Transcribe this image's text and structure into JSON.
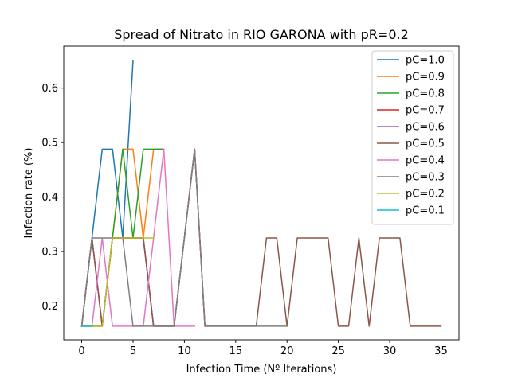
{
  "chart_data": {
    "type": "line",
    "title": "Spread of Nitrato in RIO GARONA with pR=0.2",
    "xlabel": "Infection Time (Nº Iterations)",
    "ylabel": "Infection rate (%)",
    "xlim": [
      -1.75,
      36.75
    ],
    "ylim": [
      0.138,
      0.677
    ],
    "xticks": [
      0,
      5,
      10,
      15,
      20,
      25,
      30,
      35
    ],
    "yticks": [
      0.2,
      0.3,
      0.4,
      0.5,
      0.6
    ],
    "ytick_labels": [
      "0.2",
      "0.3",
      "0.4",
      "0.5",
      "0.6"
    ],
    "grid": false,
    "legend_position": "top-right",
    "series": [
      {
        "name": "pC=1.0",
        "color": "#1f77b4",
        "x": [
          0,
          1,
          2,
          3,
          4,
          5
        ],
        "y": [
          0.163,
          0.325,
          0.488,
          0.488,
          0.325,
          0.65
        ]
      },
      {
        "name": "pC=0.9",
        "color": "#ff7f0e",
        "x": [
          0,
          1,
          2,
          3,
          4,
          5,
          6,
          7,
          8
        ],
        "y": [
          0.163,
          0.163,
          0.163,
          0.325,
          0.488,
          0.488,
          0.325,
          0.488,
          0.488
        ]
      },
      {
        "name": "pC=0.8",
        "color": "#2ca02c",
        "x": [
          0,
          1,
          2,
          3,
          4,
          5,
          6,
          7,
          8
        ],
        "y": [
          0.163,
          0.163,
          0.163,
          0.325,
          0.488,
          0.325,
          0.488,
          0.488,
          0.488
        ]
      },
      {
        "name": "pC=0.7",
        "color": "#d62728",
        "x": [
          0,
          1,
          2,
          3,
          4,
          5,
          6,
          7,
          8,
          9,
          10,
          11,
          12
        ],
        "y": [
          0.163,
          0.325,
          0.163,
          0.325,
          0.325,
          0.325,
          0.325,
          0.163,
          0.163,
          0.163,
          0.325,
          0.488,
          0.163
        ]
      },
      {
        "name": "pC=0.6",
        "color": "#9467bd",
        "x": [
          0,
          1,
          2,
          3,
          4,
          5,
          6,
          7,
          8,
          9,
          10,
          11,
          12
        ],
        "y": [
          0.163,
          0.325,
          0.163,
          0.325,
          0.325,
          0.325,
          0.325,
          0.163,
          0.163,
          0.163,
          0.325,
          0.488,
          0.163
        ]
      },
      {
        "name": "pC=0.5",
        "color": "#8c564b",
        "x": [
          0,
          1,
          2,
          3,
          4,
          5,
          6,
          7,
          8,
          9,
          10,
          11,
          12,
          13,
          14,
          15,
          16,
          17,
          18,
          19,
          20,
          21,
          22,
          23,
          24,
          25,
          26,
          27,
          28,
          29,
          30,
          31,
          32,
          33,
          34,
          35
        ],
        "y": [
          0.163,
          0.325,
          0.163,
          0.325,
          0.325,
          0.325,
          0.325,
          0.163,
          0.163,
          0.163,
          0.325,
          0.488,
          0.163,
          0.163,
          0.163,
          0.163,
          0.163,
          0.163,
          0.325,
          0.325,
          0.163,
          0.325,
          0.325,
          0.325,
          0.325,
          0.163,
          0.163,
          0.325,
          0.163,
          0.325,
          0.325,
          0.325,
          0.163,
          0.163,
          0.163,
          0.163
        ]
      },
      {
        "name": "pC=0.4",
        "color": "#e377c2",
        "x": [
          0,
          1,
          2,
          3,
          4,
          5,
          6,
          7,
          8,
          9,
          10,
          11
        ],
        "y": [
          0.163,
          0.163,
          0.325,
          0.163,
          0.163,
          0.163,
          0.163,
          0.325,
          0.488,
          0.163,
          0.163,
          0.163
        ]
      },
      {
        "name": "pC=0.3",
        "color": "#7f7f7f",
        "x": [
          0,
          1,
          2,
          3,
          4,
          5,
          6,
          7,
          8,
          9,
          10,
          11,
          12,
          13,
          14,
          15,
          16,
          17,
          18,
          19,
          20
        ],
        "y": [
          0.163,
          0.325,
          0.325,
          0.325,
          0.325,
          0.163,
          0.163,
          0.163,
          0.163,
          0.163,
          0.325,
          0.488,
          0.163,
          0.163,
          0.163,
          0.163,
          0.163,
          0.163,
          0.163,
          0.163,
          0.163
        ]
      },
      {
        "name": "pC=0.2",
        "color": "#bcbd22",
        "x": [
          0,
          1,
          2,
          3,
          4,
          5,
          6,
          7
        ],
        "y": [
          0.163,
          0.163,
          0.163,
          0.325,
          0.325,
          0.325,
          0.325,
          0.325
        ]
      },
      {
        "name": "pC=0.1",
        "color": "#17becf",
        "x": [
          0,
          1
        ],
        "y": [
          0.163,
          0.163
        ]
      }
    ]
  }
}
